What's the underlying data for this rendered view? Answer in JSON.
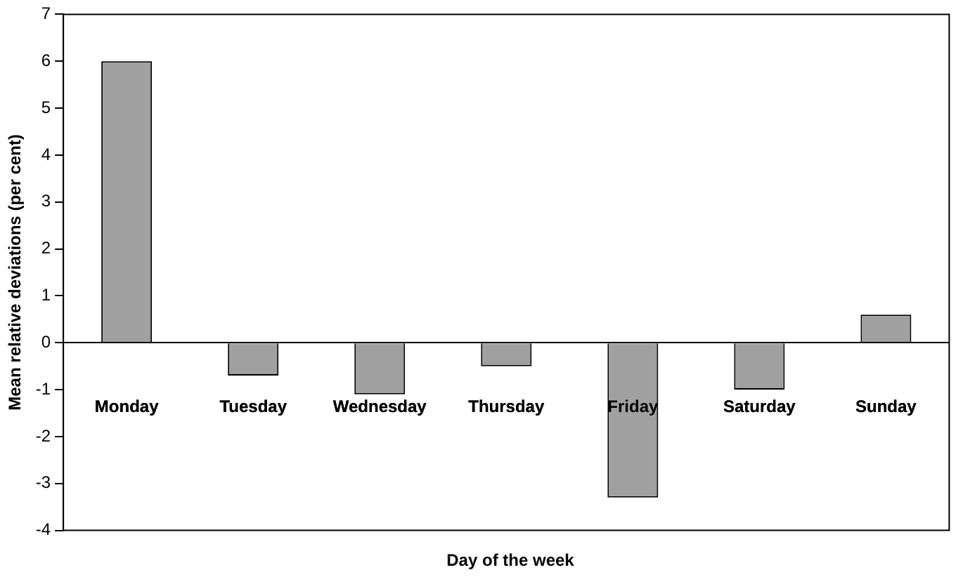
{
  "chart_data": {
    "type": "bar",
    "xlabel": "Day of the week",
    "ylabel": "Mean relative deviations (per cent)",
    "categories": [
      "Monday",
      "Tuesday",
      "Wednesday",
      "Thursday",
      "Friday",
      "Saturday",
      "Sunday"
    ],
    "values": [
      6.0,
      -0.7,
      -1.1,
      -0.5,
      -3.3,
      -1.0,
      0.6
    ],
    "color": "#a0a0a0",
    "ylim": [
      -4,
      7
    ],
    "yticks": [
      -4,
      -3,
      -2,
      -1,
      0,
      1,
      2,
      3,
      4,
      5,
      6,
      7
    ],
    "legend": false
  }
}
